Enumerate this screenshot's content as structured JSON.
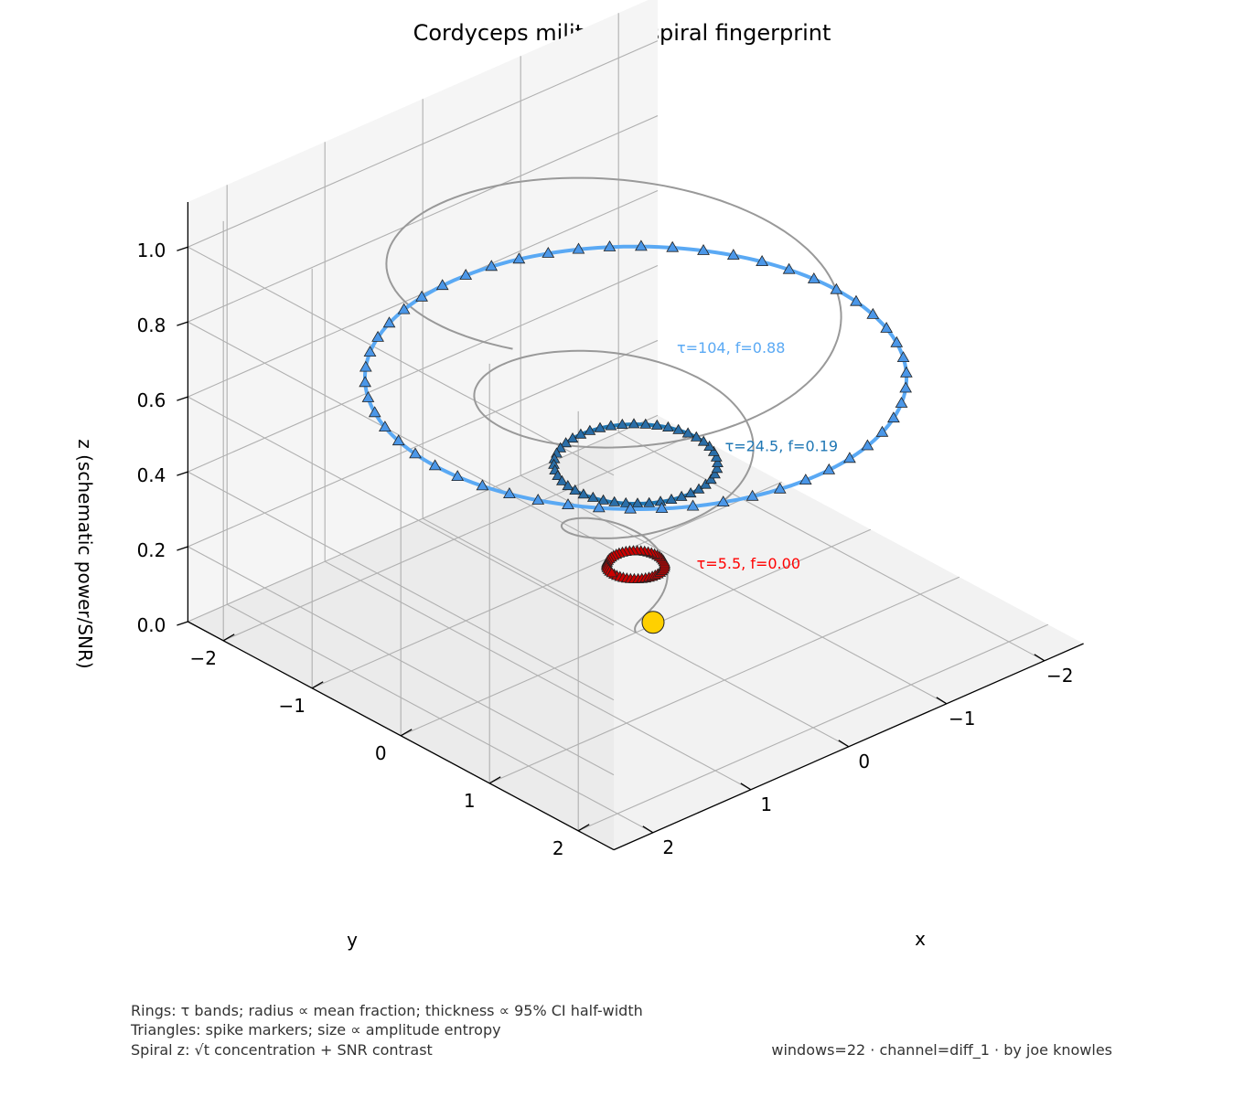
{
  "chart_data": {
    "type": "3d-line",
    "title": "Cordyceps militari — spiral fingerprint",
    "xlabel": "x",
    "ylabel": "y",
    "zlabel": "z (schematic power/SNR)",
    "xticks": [
      "−2",
      "−1",
      "0",
      "1",
      "2"
    ],
    "yticks": [
      "−2",
      "−1",
      "0",
      "1",
      "2"
    ],
    "zticks": [
      "0.0",
      "0.2",
      "0.4",
      "0.6",
      "0.8",
      "1.0"
    ],
    "xlim": [
      -2.4,
      2.4
    ],
    "ylim": [
      -2.4,
      2.4
    ],
    "zlim": [
      0,
      1.12
    ],
    "grid": true,
    "spiral": {
      "color": "#999999",
      "turns": 3,
      "r_start": 0.0,
      "r_end": 2.0,
      "z_start": 0.0,
      "z_end": 1.06,
      "start_point": [
        0.0,
        0.0,
        0.02
      ],
      "start_marker_color": "#ffd000"
    },
    "rings": [
      {
        "label": "τ=5.5, f=0.00",
        "radius": 0.22,
        "z": 0.18,
        "color": "#ff0000",
        "marker_face": "#cc0000",
        "markers": 48
      },
      {
        "label": "τ=24.5, f=0.19",
        "radius": 0.62,
        "z": 0.45,
        "color": "#1f77b4",
        "marker_face": "#2a6ea8",
        "markers": 44
      },
      {
        "label": "τ=104, f=0.88",
        "radius": 2.05,
        "z": 0.68,
        "color": "#5aa9f4",
        "marker_face": "#4b97e8",
        "markers": 54
      }
    ],
    "notes": [
      "Rings: τ bands; radius ∝ mean fraction; thickness ∝ 95% CI half-width",
      "Triangles: spike markers; size ∝ amplitude entropy",
      "Spiral z: √t concentration + SNR contrast"
    ],
    "footer": "windows=22 · channel=diff_1 · by joe knowles"
  }
}
